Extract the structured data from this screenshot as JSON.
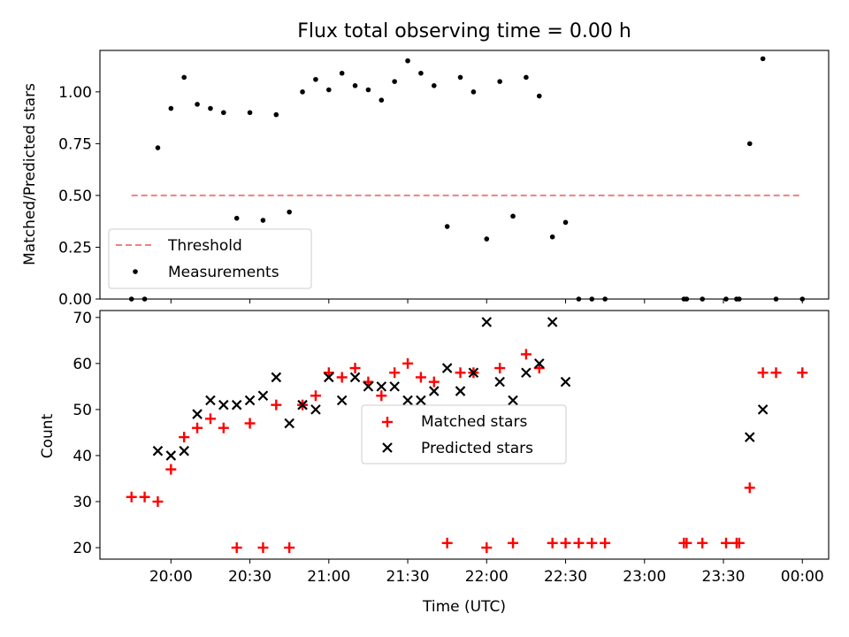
{
  "chart_data": [
    {
      "type": "scatter",
      "title": "Flux total observing time = 0.00 h",
      "ylabel": "Matched/Predicted stars",
      "ylim": [
        0,
        1.2
      ],
      "yticks": [
        0,
        0.25,
        0.5,
        0.75,
        1.0
      ],
      "ytick_labels": [
        "0.00",
        "0.25",
        "0.50",
        "0.75",
        "1.00"
      ],
      "grid": false,
      "legend_position": "lower-left",
      "threshold": {
        "name": "Threshold",
        "value": 0.5,
        "x_start": "19:45",
        "x_end": "24:00",
        "color": "#f08080",
        "style": "dashed"
      },
      "series": [
        {
          "name": "Measurements",
          "marker": "dot",
          "color": "#000000",
          "points": [
            [
              "19:45",
              0.0
            ],
            [
              "19:50",
              0.0
            ],
            [
              "19:55",
              0.73
            ],
            [
              "20:00",
              0.92
            ],
            [
              "20:05",
              1.07
            ],
            [
              "20:10",
              0.94
            ],
            [
              "20:15",
              0.92
            ],
            [
              "20:20",
              0.9
            ],
            [
              "20:25",
              0.39
            ],
            [
              "20:30",
              0.9
            ],
            [
              "20:35",
              0.38
            ],
            [
              "20:40",
              0.89
            ],
            [
              "20:45",
              0.42
            ],
            [
              "20:50",
              1.0
            ],
            [
              "20:55",
              1.06
            ],
            [
              "21:00",
              1.01
            ],
            [
              "21:05",
              1.09
            ],
            [
              "21:10",
              1.03
            ],
            [
              "21:15",
              1.01
            ],
            [
              "21:20",
              0.96
            ],
            [
              "21:25",
              1.05
            ],
            [
              "21:30",
              1.15
            ],
            [
              "21:35",
              1.09
            ],
            [
              "21:40",
              1.03
            ],
            [
              "21:45",
              0.35
            ],
            [
              "21:50",
              1.07
            ],
            [
              "21:55",
              1.0
            ],
            [
              "22:00",
              0.29
            ],
            [
              "22:05",
              1.05
            ],
            [
              "22:10",
              0.4
            ],
            [
              "22:15",
              1.07
            ],
            [
              "22:20",
              0.98
            ],
            [
              "22:25",
              0.3
            ],
            [
              "22:30",
              0.37
            ],
            [
              "22:35",
              0.0
            ],
            [
              "22:40",
              0.0
            ],
            [
              "22:45",
              0.0
            ],
            [
              "23:15",
              0.0
            ],
            [
              "23:16",
              0.0
            ],
            [
              "23:22",
              0.0
            ],
            [
              "23:31",
              0.0
            ],
            [
              "23:35",
              0.0
            ],
            [
              "23:36",
              0.0
            ],
            [
              "23:40",
              0.75
            ],
            [
              "23:45",
              1.16
            ],
            [
              "23:50",
              0.0
            ],
            [
              "24:00",
              0.0
            ]
          ]
        }
      ]
    },
    {
      "type": "scatter",
      "xlabel": "Time (UTC)",
      "ylabel": "Count",
      "ylim": [
        17.5,
        71.5
      ],
      "yticks": [
        20,
        30,
        40,
        50,
        60,
        70
      ],
      "ytick_labels": [
        "20",
        "30",
        "40",
        "50",
        "60",
        "70"
      ],
      "xlim": [
        "19:33",
        "24:10"
      ],
      "xticks": [
        "20:00",
        "20:30",
        "21:00",
        "21:30",
        "22:00",
        "22:30",
        "23:00",
        "23:30",
        "24:00"
      ],
      "xtick_labels": [
        "20:00",
        "20:30",
        "21:00",
        "21:30",
        "22:00",
        "22:30",
        "23:00",
        "23:30",
        "00:00"
      ],
      "grid": false,
      "legend_position": "center",
      "series": [
        {
          "name": "Matched stars",
          "marker": "plus",
          "color": "#ff0000",
          "points": [
            [
              "19:45",
              31
            ],
            [
              "19:50",
              31
            ],
            [
              "19:55",
              30
            ],
            [
              "20:00",
              37
            ],
            [
              "20:05",
              44
            ],
            [
              "20:10",
              46
            ],
            [
              "20:15",
              48
            ],
            [
              "20:20",
              46
            ],
            [
              "20:25",
              20
            ],
            [
              "20:30",
              47
            ],
            [
              "20:35",
              20
            ],
            [
              "20:40",
              51
            ],
            [
              "20:45",
              20
            ],
            [
              "20:50",
              51
            ],
            [
              "20:55",
              53
            ],
            [
              "21:00",
              58
            ],
            [
              "21:05",
              57
            ],
            [
              "21:10",
              59
            ],
            [
              "21:15",
              56
            ],
            [
              "21:20",
              53
            ],
            [
              "21:25",
              58
            ],
            [
              "21:30",
              60
            ],
            [
              "21:35",
              57
            ],
            [
              "21:40",
              56
            ],
            [
              "21:45",
              21
            ],
            [
              "21:50",
              58
            ],
            [
              "21:55",
              58
            ],
            [
              "22:00",
              20
            ],
            [
              "22:05",
              59
            ],
            [
              "22:10",
              21
            ],
            [
              "22:15",
              62
            ],
            [
              "22:20",
              59
            ],
            [
              "22:25",
              21
            ],
            [
              "22:30",
              21
            ],
            [
              "22:35",
              21
            ],
            [
              "22:40",
              21
            ],
            [
              "22:45",
              21
            ],
            [
              "23:15",
              21
            ],
            [
              "23:16",
              21
            ],
            [
              "23:22",
              21
            ],
            [
              "23:31",
              21
            ],
            [
              "23:35",
              21
            ],
            [
              "23:36",
              21
            ],
            [
              "23:40",
              33
            ],
            [
              "23:45",
              58
            ],
            [
              "23:50",
              58
            ],
            [
              "24:00",
              58
            ]
          ]
        },
        {
          "name": "Predicted stars",
          "marker": "x",
          "color": "#000000",
          "points": [
            [
              "19:55",
              41
            ],
            [
              "20:00",
              40
            ],
            [
              "20:05",
              41
            ],
            [
              "20:10",
              49
            ],
            [
              "20:15",
              52
            ],
            [
              "20:20",
              51
            ],
            [
              "20:25",
              51
            ],
            [
              "20:30",
              52
            ],
            [
              "20:35",
              53
            ],
            [
              "20:40",
              57
            ],
            [
              "20:45",
              47
            ],
            [
              "20:50",
              51
            ],
            [
              "20:55",
              50
            ],
            [
              "21:00",
              57
            ],
            [
              "21:05",
              52
            ],
            [
              "21:10",
              57
            ],
            [
              "21:15",
              55
            ],
            [
              "21:20",
              55
            ],
            [
              "21:25",
              55
            ],
            [
              "21:30",
              52
            ],
            [
              "21:35",
              52
            ],
            [
              "21:40",
              54
            ],
            [
              "21:45",
              59
            ],
            [
              "21:50",
              54
            ],
            [
              "21:55",
              58
            ],
            [
              "22:00",
              69
            ],
            [
              "22:05",
              56
            ],
            [
              "22:10",
              52
            ],
            [
              "22:15",
              58
            ],
            [
              "22:20",
              60
            ],
            [
              "22:25",
              69
            ],
            [
              "22:30",
              56
            ],
            [
              "23:40",
              44
            ],
            [
              "23:45",
              50
            ]
          ]
        }
      ]
    }
  ]
}
